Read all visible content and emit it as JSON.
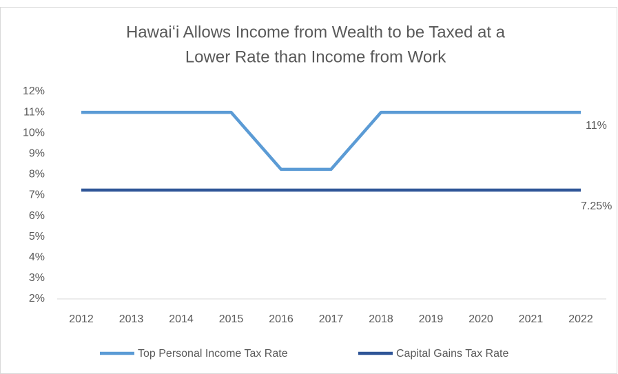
{
  "chart_data": {
    "type": "line",
    "title": [
      "Hawaiʻi Allows Income from Wealth to be Taxed at a",
      "Lower Rate than Income from Work"
    ],
    "categories": [
      "2012",
      "2013",
      "2014",
      "2015",
      "2016",
      "2017",
      "2018",
      "2019",
      "2020",
      "2021",
      "2022"
    ],
    "series": [
      {
        "name": "Top Personal Income Tax Rate",
        "color": "#5b9bd5",
        "values": [
          11,
          11,
          11,
          11,
          8.25,
          8.25,
          11,
          11,
          11,
          11,
          11
        ],
        "value_labels": [
          null,
          null,
          null,
          null,
          null,
          null,
          null,
          null,
          null,
          null,
          "11%"
        ]
      },
      {
        "name": "Capital Gains Tax Rate",
        "color": "#2f5597",
        "values": [
          7.25,
          7.25,
          7.25,
          7.25,
          7.25,
          7.25,
          7.25,
          7.25,
          7.25,
          7.25,
          7.25
        ],
        "value_labels": [
          null,
          null,
          null,
          null,
          null,
          null,
          null,
          null,
          null,
          null,
          "7.25%"
        ]
      }
    ],
    "ylim": [
      2,
      12
    ],
    "yticks": [
      {
        "value": 2,
        "label": "2%"
      },
      {
        "value": 3,
        "label": "3%"
      },
      {
        "value": 4,
        "label": "4%"
      },
      {
        "value": 5,
        "label": "5%"
      },
      {
        "value": 6,
        "label": "6%"
      },
      {
        "value": 7,
        "label": "7%"
      },
      {
        "value": 8,
        "label": "8%"
      },
      {
        "value": 9,
        "label": "9%"
      },
      {
        "value": 10,
        "label": "10%"
      },
      {
        "value": 11,
        "label": "11%"
      },
      {
        "value": 12,
        "label": "12%"
      }
    ],
    "grid": false,
    "legend": "bottom"
  }
}
